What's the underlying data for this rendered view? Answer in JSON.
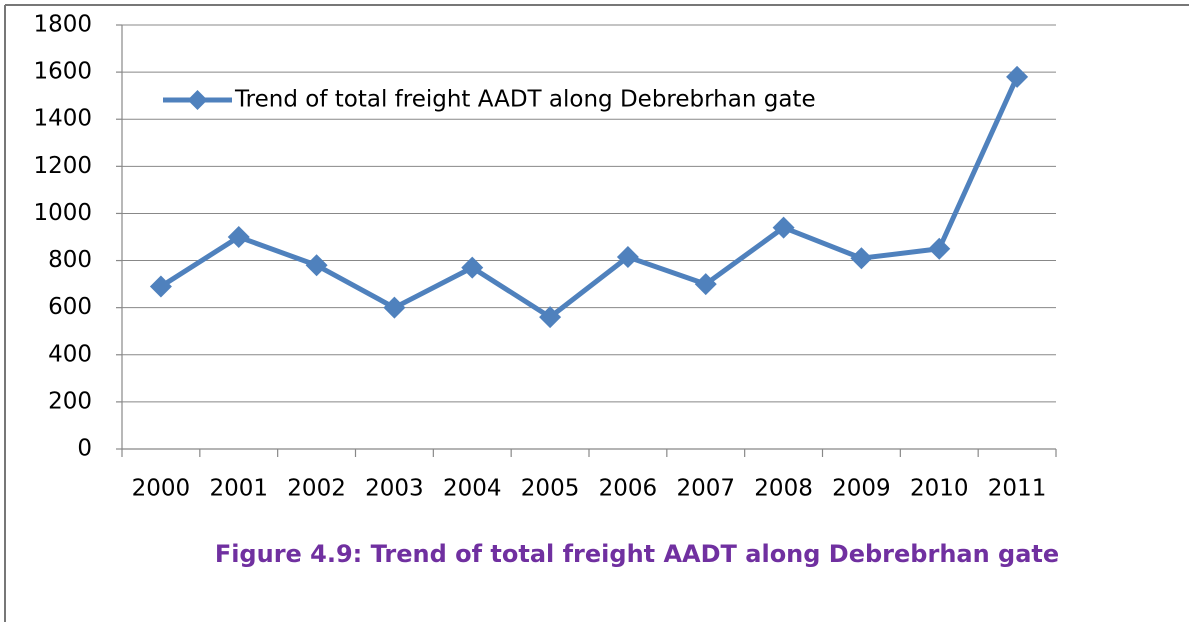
{
  "chart_data": {
    "type": "line",
    "caption": "Figure 4.9: Trend of total freight AADT along Debrebrhan gate",
    "categories": [
      "2000",
      "2001",
      "2002",
      "2003",
      "2004",
      "2005",
      "2006",
      "2007",
      "2008",
      "2009",
      "2010",
      "2011"
    ],
    "series": [
      {
        "name": "Trend of total freight AADT along Debrebrhan gate",
        "color": "#4f81bd",
        "values": [
          690,
          900,
          780,
          600,
          770,
          560,
          815,
          700,
          940,
          810,
          850,
          1580
        ]
      }
    ],
    "ylim": [
      0,
      1800
    ],
    "yticks": [
      0,
      200,
      400,
      600,
      800,
      1000,
      1200,
      1400,
      1600,
      1800
    ],
    "grid": true,
    "legend": "top-left"
  }
}
